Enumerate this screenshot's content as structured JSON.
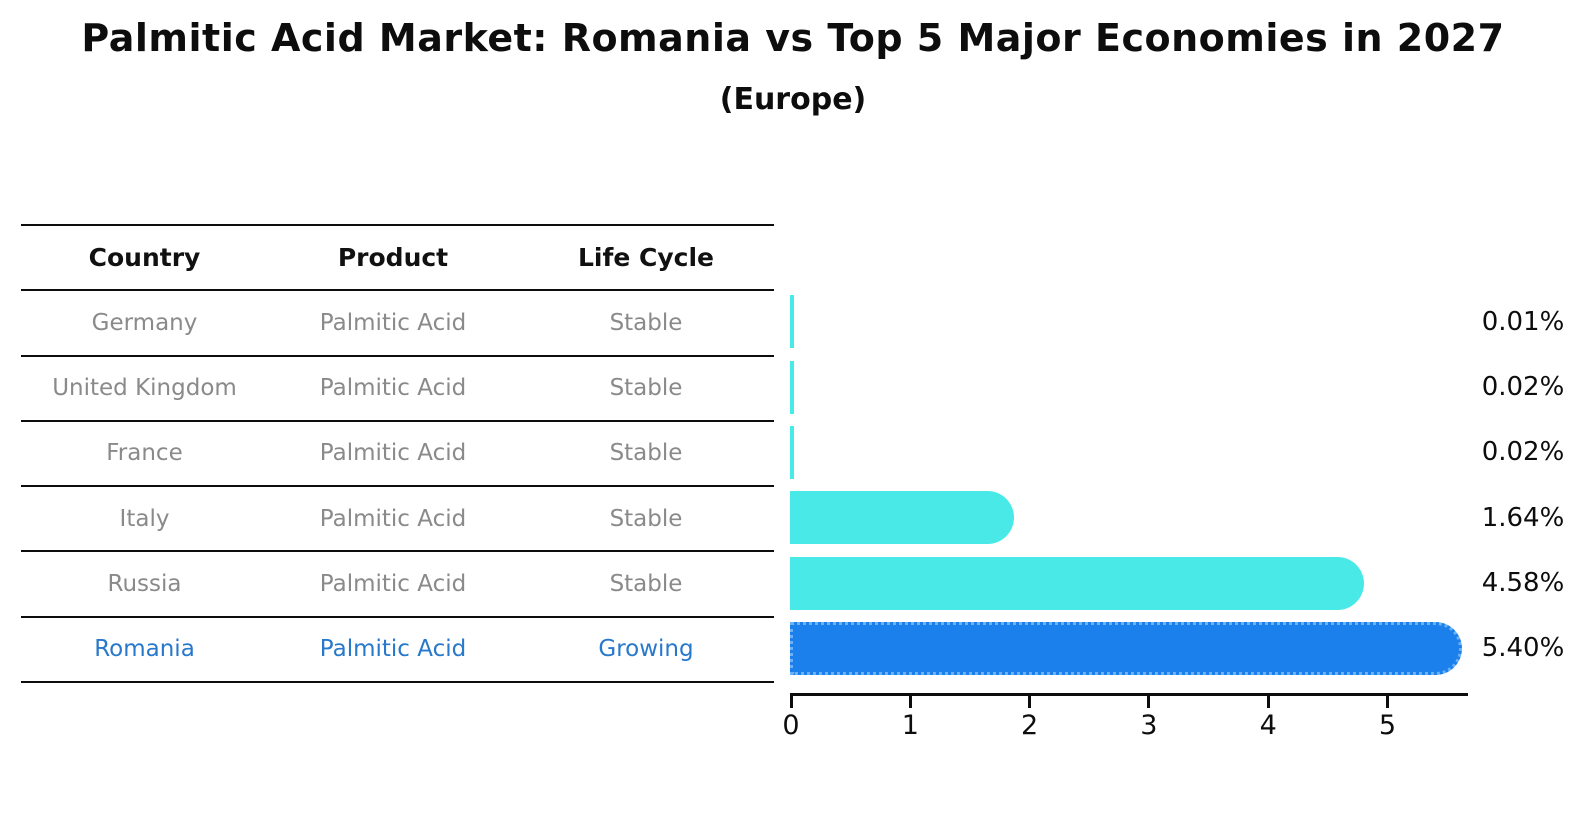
{
  "title": "Palmitic Acid Market: Romania vs Top 5 Major Economies in 2027",
  "subtitle": "(Europe)",
  "table": {
    "headers": [
      "Country",
      "Product",
      "Life Cycle"
    ],
    "rows": [
      {
        "country": "Germany",
        "product": "Palmitic Acid",
        "life_cycle": "Stable",
        "highlight": false
      },
      {
        "country": "United Kingdom",
        "product": "Palmitic Acid",
        "life_cycle": "Stable",
        "highlight": false
      },
      {
        "country": "France",
        "product": "Palmitic Acid",
        "life_cycle": "Stable",
        "highlight": false
      },
      {
        "country": "Italy",
        "product": "Palmitic Acid",
        "life_cycle": "Stable",
        "highlight": false
      },
      {
        "country": "Russia",
        "product": "Palmitic Acid",
        "life_cycle": "Stable",
        "highlight": false
      },
      {
        "country": "Romania",
        "product": "Palmitic Acid",
        "life_cycle": "Growing",
        "highlight": true
      }
    ]
  },
  "chart_data": {
    "type": "bar",
    "orientation": "horizontal",
    "categories": [
      "Germany",
      "United Kingdom",
      "France",
      "Italy",
      "Russia",
      "Romania"
    ],
    "values": [
      0.01,
      0.02,
      0.02,
      1.64,
      4.58,
      5.4
    ],
    "value_labels": [
      "0.01%",
      "0.02%",
      "0.02%",
      "1.64%",
      "4.58%",
      "5.40%"
    ],
    "x_ticks": [
      "0",
      "1",
      "2",
      "3",
      "4",
      "5"
    ],
    "xlim": [
      0,
      5.68
    ],
    "xlabel": "",
    "ylabel": "",
    "grid": false,
    "legend": "none",
    "highlight_index": 5,
    "bar_color": "#48e9e6",
    "highlight_bar_color": "#1b80ec",
    "highlight_text_color": "#2878cb",
    "row_text_color": "#8a8a8a",
    "axis_color": "#0d0d0d"
  }
}
